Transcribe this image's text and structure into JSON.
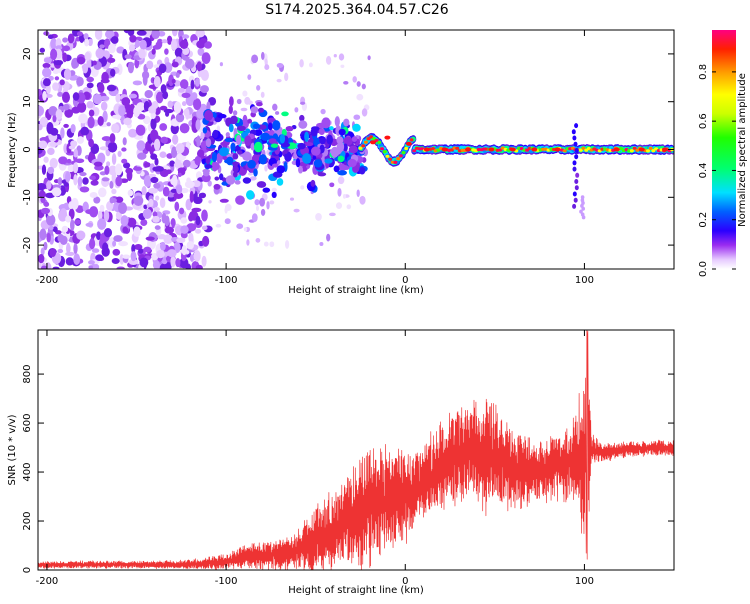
{
  "figure": {
    "title": "S174.2025.364.04.57.C26"
  },
  "chart_data": [
    {
      "type": "heatmap",
      "xlabel": "Height of straight line (km)",
      "ylabel": "Frequency (Hz)",
      "xlim": [
        -205,
        150
      ],
      "ylim": [
        -25,
        25
      ],
      "xticks": [
        -200,
        -100,
        0,
        100
      ],
      "yticks": [
        -20,
        -10,
        0,
        10,
        20
      ],
      "colorbar": {
        "label": "Normalized spectral amplitude",
        "range": [
          0,
          0.97
        ],
        "ticks": [
          0.0,
          0.2,
          0.4,
          0.6,
          0.8
        ]
      },
      "description": "Diffuse low-amplitude noise for heights below about -110 km; clustered higher amplitudes between -110 and -25 km near 0 Hz; a narrow high-amplitude band centered near 0 Hz from about -25 km to 150 km with a spike near 95 km down to -13 Hz"
    },
    {
      "type": "line",
      "xlabel": "Height of straight line (km)",
      "ylabel": "SNR (10 * v/v)",
      "xlim": [
        -205,
        150
      ],
      "ylim": [
        0,
        980
      ],
      "xticks": [
        -200,
        -100,
        0,
        100
      ],
      "yticks": [
        0,
        200,
        400,
        600,
        800
      ],
      "series": [
        {
          "name": "SNR",
          "color": "#ee3333",
          "x": [
            -205,
            -190,
            -175,
            -160,
            -145,
            -130,
            -115,
            -100,
            -90,
            -80,
            -70,
            -60,
            -50,
            -40,
            -30,
            -20,
            -10,
            0,
            10,
            20,
            30,
            40,
            50,
            60,
            70,
            80,
            90,
            95,
            100,
            102,
            104,
            110,
            120,
            130,
            140,
            150
          ],
          "y": [
            20,
            22,
            22,
            22,
            22,
            22,
            25,
            35,
            55,
            60,
            65,
            80,
            120,
            160,
            210,
            260,
            280,
            300,
            350,
            420,
            470,
            480,
            460,
            420,
            400,
            410,
            440,
            450,
            460,
            500,
            490,
            480,
            490,
            495,
            500,
            495
          ],
          "envelope": [
            12,
            14,
            14,
            14,
            14,
            15,
            20,
            30,
            45,
            55,
            60,
            80,
            130,
            150,
            190,
            230,
            210,
            170,
            150,
            170,
            200,
            230,
            200,
            160,
            120,
            120,
            150,
            170,
            350,
            320,
            60,
            40,
            30,
            30,
            30,
            30
          ]
        }
      ]
    }
  ]
}
